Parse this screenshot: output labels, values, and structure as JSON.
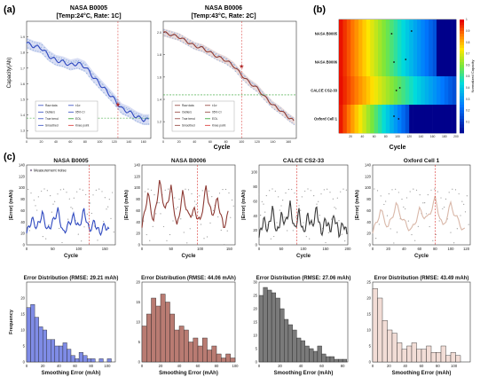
{
  "panel_letters": [
    "(a)",
    "(b)",
    "(c)"
  ],
  "colors": {
    "b0005": "#2f49c0",
    "b0006": "#8e3b35",
    "calce": "#3a3a3a",
    "oxford": "#d9b7a8",
    "knee": "#d9302c",
    "eol": "#2ca02c",
    "heat_low": "#ff0000",
    "heat_high": "#00008b"
  },
  "chart_data": [
    {
      "type": "line",
      "panel": "a-left",
      "title": "NASA B0005",
      "subtitle": "[Temp:24°C, Rate: 1C]",
      "ylabel": "Capacity(Ah)",
      "xlabel": "",
      "xlim": [
        0,
        170
      ],
      "ylim": [
        1.25,
        2.0
      ],
      "xticks": [
        "0",
        "20",
        "40",
        "60",
        "80",
        "100",
        "120",
        "140",
        "160"
      ],
      "yticks": [
        "1.3",
        "1.4",
        "1.5",
        "1.6",
        "1.7",
        "1.8",
        "1.9"
      ],
      "x": [
        0,
        10,
        20,
        30,
        40,
        50,
        60,
        70,
        80,
        90,
        100,
        110,
        120,
        130,
        140,
        150,
        160,
        168
      ],
      "y": [
        1.86,
        1.84,
        1.83,
        1.78,
        1.75,
        1.74,
        1.72,
        1.73,
        1.71,
        1.65,
        1.6,
        1.55,
        1.5,
        1.44,
        1.42,
        1.39,
        1.37,
        1.37
      ],
      "eol_threshold": 1.38,
      "knee_x": 125,
      "knee_y": 1.47,
      "legend": [
        "Raw data",
        "Outliers",
        "True trend",
        "Smoothed",
        "±1σ",
        "95% CI",
        "EOL",
        "Knee point"
      ]
    },
    {
      "type": "line",
      "panel": "a-right",
      "title": "NASA B0006",
      "subtitle": "[Temp:43°C, Rate: 2C]",
      "xlabel": "Cycle",
      "xlim": [
        0,
        170
      ],
      "ylim": [
        1.05,
        2.1
      ],
      "xticks": [
        "0",
        "20",
        "40",
        "60",
        "80",
        "100",
        "120",
        "140",
        "160"
      ],
      "yticks": [
        "1.2",
        "1.4",
        "1.6",
        "1.8",
        "2.0"
      ],
      "x": [
        0,
        10,
        20,
        30,
        40,
        50,
        60,
        70,
        80,
        90,
        100,
        110,
        120,
        130,
        140,
        150,
        160,
        168
      ],
      "y": [
        2.0,
        1.98,
        1.96,
        1.92,
        1.88,
        1.86,
        1.82,
        1.78,
        1.75,
        1.7,
        1.62,
        1.55,
        1.5,
        1.42,
        1.35,
        1.3,
        1.24,
        1.2
      ],
      "eol_threshold": 1.44,
      "knee_x": 100,
      "knee_y": 1.7,
      "legend": [
        "Raw data",
        "Outliers",
        "True trend",
        "Smoothed",
        "±1σ",
        "95% CI",
        "EOL",
        "Knee point"
      ]
    },
    {
      "type": "heatmap",
      "panel": "b",
      "xlabel": "Cycle",
      "colorbar_label": "Normalized Capacity",
      "rows": [
        "NASA B0005",
        "NASA B0006",
        "CALCE CS2-33",
        "Oxford Cell 1"
      ],
      "xticks": [
        "20",
        "40",
        "60",
        "80",
        "100",
        "120",
        "140",
        "160",
        "180",
        "200"
      ],
      "colorbar_ticks": [
        "0.1",
        "0.2",
        "0.3",
        "0.4",
        "0.5",
        "0.6",
        "0.7",
        "0.8",
        "0.9",
        "1"
      ],
      "row_end_cycle": [
        168,
        168,
        200,
        120
      ]
    },
    {
      "type": "line",
      "panel": "c-top-1",
      "title": "NASA B0005",
      "ylabel": "|Error| (mAh)",
      "xlabel": "Cycle",
      "xlim": [
        0,
        170
      ],
      "ylim": [
        0,
        140
      ],
      "xticks": [
        "0",
        "50",
        "100",
        "150"
      ],
      "yticks": [
        "0",
        "20",
        "40",
        "60",
        "80",
        "100",
        "120",
        "140"
      ],
      "legend": [
        "Measurement noise"
      ],
      "knee_x": 120,
      "x": [
        0,
        10,
        20,
        30,
        40,
        50,
        60,
        70,
        80,
        90,
        100,
        110,
        120,
        130,
        140,
        150,
        160
      ],
      "y": [
        20,
        45,
        30,
        55,
        25,
        40,
        60,
        20,
        35,
        50,
        30,
        60,
        25,
        40,
        20,
        35,
        20
      ]
    },
    {
      "type": "line",
      "panel": "c-top-2",
      "title": "NASA B0006",
      "ylabel": "|Error| (mAh)",
      "xlabel": "Cycle",
      "xlim": [
        0,
        160
      ],
      "ylim": [
        0,
        140
      ],
      "xticks": [
        "0",
        "50",
        "100",
        "150"
      ],
      "yticks": [
        "0",
        "20",
        "40",
        "60",
        "80",
        "100",
        "120",
        "140"
      ],
      "knee_x": 95,
      "x": [
        0,
        10,
        20,
        30,
        40,
        50,
        60,
        70,
        80,
        90,
        100,
        110,
        120,
        130,
        140,
        150
      ],
      "y": [
        30,
        90,
        40,
        110,
        60,
        100,
        30,
        90,
        50,
        60,
        40,
        100,
        50,
        80,
        30,
        60
      ]
    },
    {
      "type": "line",
      "panel": "c-top-3",
      "title": "CALCE CS2-33",
      "ylabel": "|Error| (mAh)",
      "xlabel": "Cycle",
      "xlim": [
        0,
        200
      ],
      "ylim": [
        0,
        110
      ],
      "xticks": [
        "0",
        "50",
        "100",
        "150",
        "200"
      ],
      "yticks": [
        "0",
        "20",
        "40",
        "60",
        "80",
        "100"
      ],
      "knee_x": 85,
      "x": [
        0,
        10,
        20,
        30,
        40,
        50,
        60,
        70,
        80,
        90,
        100,
        110,
        120,
        130,
        140,
        150,
        160,
        170,
        180,
        190,
        200
      ],
      "y": [
        10,
        35,
        20,
        50,
        15,
        40,
        30,
        55,
        20,
        45,
        15,
        40,
        25,
        50,
        15,
        35,
        20,
        40,
        15,
        30,
        10
      ]
    },
    {
      "type": "line",
      "panel": "c-top-4",
      "title": "Oxford Cell 1",
      "ylabel": "|Error| (mAh)",
      "xlabel": "Cycle",
      "xlim": [
        0,
        125
      ],
      "ylim": [
        0,
        140
      ],
      "xticks": [
        "0",
        "20",
        "40",
        "60",
        "80",
        "100",
        "120"
      ],
      "yticks": [
        "0",
        "20",
        "40",
        "60",
        "80",
        "100",
        "120",
        "140"
      ],
      "knee_x": 80,
      "x": [
        0,
        10,
        20,
        30,
        40,
        50,
        60,
        70,
        80,
        90,
        100,
        110,
        120
      ],
      "y": [
        20,
        60,
        30,
        70,
        40,
        25,
        60,
        45,
        80,
        30,
        70,
        40,
        20
      ]
    },
    {
      "type": "bar",
      "panel": "c-bottom-1",
      "title": "Error Distribution (RMSE: 29.21 mAh)",
      "ylabel": "Frequency",
      "xlabel": "Smoothing Error (mAh)",
      "xlim": [
        0,
        110
      ],
      "ylim": [
        0,
        25
      ],
      "xticks": [
        "0",
        "20",
        "40",
        "60",
        "80",
        "100"
      ],
      "yticks": [
        "0",
        "5",
        "10",
        "15",
        "20"
      ],
      "bin_width": 5,
      "values": [
        17,
        18,
        14,
        11,
        10,
        7,
        7,
        5,
        5,
        6,
        4,
        2,
        1,
        3,
        2,
        1,
        1,
        0,
        1,
        0,
        1
      ]
    },
    {
      "type": "bar",
      "panel": "c-bottom-2",
      "title": "Error Distribution (RMSE: 44.06 mAh)",
      "xlabel": "Smoothing Error (mAh)",
      "xlim": [
        0,
        100
      ],
      "ylim": [
        0,
        20
      ],
      "xticks": [
        "0",
        "20",
        "40",
        "60",
        "80",
        "100"
      ],
      "yticks": [
        "0",
        "5",
        "10",
        "15",
        "20"
      ],
      "bin_width": 5,
      "values": [
        9,
        12,
        16,
        14,
        17,
        15,
        12,
        8,
        9,
        8,
        5,
        6,
        4,
        6,
        3,
        4,
        2,
        1,
        2,
        1
      ]
    },
    {
      "type": "bar",
      "panel": "c-bottom-3",
      "title": "Error Distribution (RMSE: 27.06 mAh)",
      "xlabel": "Smoothing Error (mAh)",
      "xlim": [
        0,
        85
      ],
      "ylim": [
        0,
        30
      ],
      "xticks": [
        "0",
        "20",
        "40",
        "60",
        "80"
      ],
      "yticks": [
        "0",
        "5",
        "10",
        "15",
        "20",
        "25",
        "30"
      ],
      "bin_width": 4,
      "values": [
        25,
        28,
        27,
        26,
        24,
        20,
        16,
        14,
        12,
        9,
        8,
        6,
        5,
        4,
        6,
        3,
        2,
        2,
        1,
        1,
        1
      ]
    },
    {
      "type": "bar",
      "panel": "c-bottom-4",
      "title": "Error Distribution (RMSE: 43.49 mAh)",
      "xlabel": "Smoothing Error (mAh)",
      "xlim": [
        0,
        120
      ],
      "ylim": [
        0,
        25
      ],
      "xticks": [
        "0",
        "20",
        "40",
        "60",
        "80",
        "100"
      ],
      "yticks": [
        "0",
        "5",
        "10",
        "15",
        "20",
        "25"
      ],
      "bin_width": 6,
      "values": [
        23,
        20,
        13,
        10,
        9,
        6,
        4,
        5,
        6,
        4,
        4,
        5,
        3,
        3,
        5,
        2,
        3,
        2
      ]
    }
  ]
}
